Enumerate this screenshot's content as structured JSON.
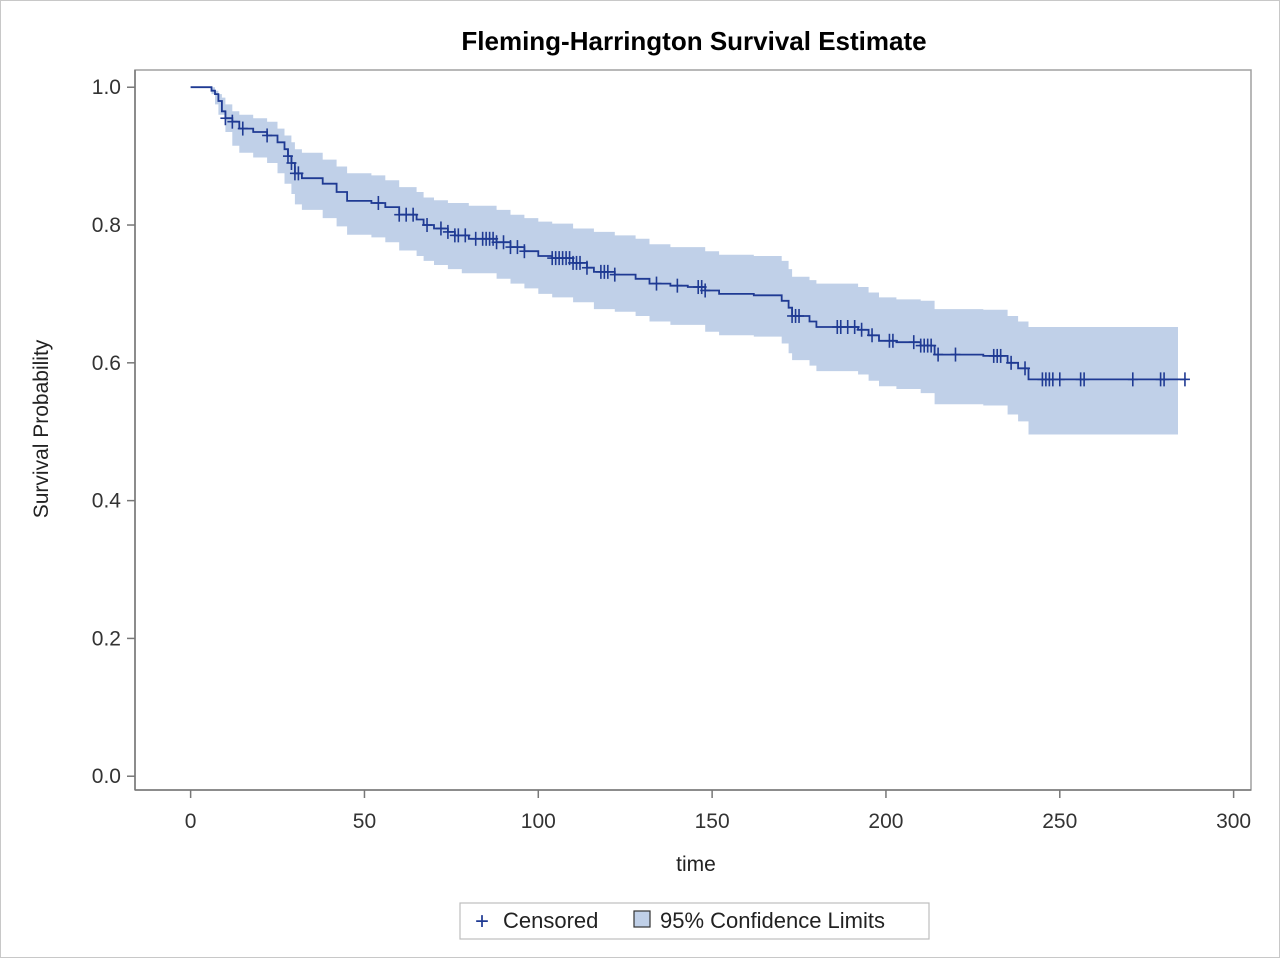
{
  "chart_data": {
    "type": "line",
    "title": "Fleming-Harrington Survival Estimate",
    "xlabel": "time",
    "ylabel": "Survival Probability",
    "xlim": [
      -16,
      305
    ],
    "ylim": [
      -0.02,
      1.025
    ],
    "xticks": [
      "0",
      "50",
      "100",
      "150",
      "200",
      "250",
      "300"
    ],
    "xtick_values": [
      0,
      50,
      100,
      150,
      200,
      250,
      300
    ],
    "yticks": [
      "0.0",
      "0.2",
      "0.4",
      "0.6",
      "0.8",
      "1.0"
    ],
    "ytick_values": [
      0.0,
      0.2,
      0.4,
      0.6,
      0.8,
      1.0
    ],
    "grid": false,
    "legend_position": "bottom-center",
    "colors": {
      "line": "#1f3a93",
      "band": "#c0d0e8",
      "frame": "#a0a0a0"
    },
    "series": [
      {
        "type": "step",
        "points": [
          [
            0,
            1.0
          ],
          [
            4,
            1.0
          ],
          [
            6,
            0.995
          ],
          [
            7,
            0.99
          ],
          [
            8,
            0.98
          ],
          [
            9,
            0.965
          ],
          [
            10,
            0.955
          ],
          [
            12,
            0.95
          ],
          [
            14,
            0.94
          ],
          [
            18,
            0.935
          ],
          [
            22,
            0.93
          ],
          [
            25,
            0.92
          ],
          [
            27,
            0.91
          ],
          [
            28,
            0.9
          ],
          [
            29,
            0.89
          ],
          [
            30,
            0.875
          ],
          [
            32,
            0.868
          ],
          [
            38,
            0.86
          ],
          [
            42,
            0.848
          ],
          [
            45,
            0.835
          ],
          [
            52,
            0.832
          ],
          [
            56,
            0.826
          ],
          [
            60,
            0.815
          ],
          [
            65,
            0.808
          ],
          [
            67,
            0.8
          ],
          [
            70,
            0.795
          ],
          [
            74,
            0.79
          ],
          [
            76,
            0.785
          ],
          [
            80,
            0.78
          ],
          [
            88,
            0.775
          ],
          [
            92,
            0.768
          ],
          [
            96,
            0.762
          ],
          [
            100,
            0.755
          ],
          [
            104,
            0.752
          ],
          [
            110,
            0.745
          ],
          [
            114,
            0.738
          ],
          [
            116,
            0.732
          ],
          [
            122,
            0.728
          ],
          [
            128,
            0.722
          ],
          [
            132,
            0.715
          ],
          [
            138,
            0.712
          ],
          [
            143,
            0.71
          ],
          [
            148,
            0.705
          ],
          [
            152,
            0.7
          ],
          [
            162,
            0.698
          ],
          [
            170,
            0.69
          ],
          [
            172,
            0.68
          ],
          [
            173,
            0.668
          ],
          [
            178,
            0.66
          ],
          [
            180,
            0.652
          ],
          [
            192,
            0.648
          ],
          [
            195,
            0.64
          ],
          [
            198,
            0.632
          ],
          [
            203,
            0.63
          ],
          [
            210,
            0.625
          ],
          [
            214,
            0.612
          ],
          [
            228,
            0.61
          ],
          [
            235,
            0.6
          ],
          [
            238,
            0.592
          ],
          [
            241,
            0.576
          ],
          [
            286,
            0.576
          ]
        ]
      }
    ],
    "confidence_band": {
      "name": "95% Confidence Limits",
      "lower": [
        [
          0,
          1.0
        ],
        [
          4,
          1.0
        ],
        [
          6,
          0.99
        ],
        [
          7,
          0.975
        ],
        [
          8,
          0.96
        ],
        [
          10,
          0.935
        ],
        [
          12,
          0.915
        ],
        [
          14,
          0.905
        ],
        [
          18,
          0.898
        ],
        [
          22,
          0.89
        ],
        [
          25,
          0.875
        ],
        [
          27,
          0.86
        ],
        [
          29,
          0.845
        ],
        [
          30,
          0.83
        ],
        [
          32,
          0.822
        ],
        [
          38,
          0.81
        ],
        [
          42,
          0.798
        ],
        [
          45,
          0.786
        ],
        [
          52,
          0.782
        ],
        [
          56,
          0.775
        ],
        [
          60,
          0.763
        ],
        [
          65,
          0.755
        ],
        [
          67,
          0.748
        ],
        [
          70,
          0.742
        ],
        [
          74,
          0.736
        ],
        [
          78,
          0.73
        ],
        [
          88,
          0.722
        ],
        [
          92,
          0.715
        ],
        [
          96,
          0.708
        ],
        [
          100,
          0.7
        ],
        [
          104,
          0.695
        ],
        [
          110,
          0.688
        ],
        [
          116,
          0.678
        ],
        [
          122,
          0.674
        ],
        [
          128,
          0.668
        ],
        [
          132,
          0.66
        ],
        [
          138,
          0.655
        ],
        [
          148,
          0.645
        ],
        [
          152,
          0.64
        ],
        [
          162,
          0.638
        ],
        [
          170,
          0.628
        ],
        [
          172,
          0.614
        ],
        [
          173,
          0.604
        ],
        [
          178,
          0.596
        ],
        [
          180,
          0.588
        ],
        [
          192,
          0.583
        ],
        [
          195,
          0.574
        ],
        [
          198,
          0.566
        ],
        [
          203,
          0.562
        ],
        [
          210,
          0.556
        ],
        [
          214,
          0.54
        ],
        [
          228,
          0.538
        ],
        [
          235,
          0.525
        ],
        [
          238,
          0.515
        ],
        [
          241,
          0.496
        ],
        [
          284,
          0.496
        ]
      ],
      "upper": [
        [
          0,
          1.0
        ],
        [
          4,
          1.0
        ],
        [
          6,
          1.0
        ],
        [
          7,
          0.995
        ],
        [
          8,
          0.99
        ],
        [
          9,
          0.985
        ],
        [
          10,
          0.975
        ],
        [
          12,
          0.965
        ],
        [
          14,
          0.96
        ],
        [
          18,
          0.955
        ],
        [
          22,
          0.95
        ],
        [
          25,
          0.94
        ],
        [
          27,
          0.93
        ],
        [
          29,
          0.92
        ],
        [
          30,
          0.91
        ],
        [
          32,
          0.905
        ],
        [
          38,
          0.895
        ],
        [
          42,
          0.885
        ],
        [
          45,
          0.875
        ],
        [
          52,
          0.872
        ],
        [
          56,
          0.865
        ],
        [
          60,
          0.855
        ],
        [
          65,
          0.848
        ],
        [
          67,
          0.84
        ],
        [
          70,
          0.836
        ],
        [
          74,
          0.832
        ],
        [
          80,
          0.828
        ],
        [
          88,
          0.822
        ],
        [
          92,
          0.815
        ],
        [
          96,
          0.81
        ],
        [
          100,
          0.805
        ],
        [
          104,
          0.802
        ],
        [
          110,
          0.795
        ],
        [
          116,
          0.79
        ],
        [
          122,
          0.785
        ],
        [
          128,
          0.78
        ],
        [
          132,
          0.772
        ],
        [
          138,
          0.768
        ],
        [
          148,
          0.762
        ],
        [
          152,
          0.757
        ],
        [
          162,
          0.755
        ],
        [
          170,
          0.748
        ],
        [
          172,
          0.736
        ],
        [
          173,
          0.725
        ],
        [
          178,
          0.72
        ],
        [
          180,
          0.715
        ],
        [
          192,
          0.71
        ],
        [
          195,
          0.702
        ],
        [
          198,
          0.695
        ],
        [
          203,
          0.692
        ],
        [
          210,
          0.69
        ],
        [
          214,
          0.678
        ],
        [
          228,
          0.677
        ],
        [
          235,
          0.668
        ],
        [
          238,
          0.66
        ],
        [
          241,
          0.652
        ],
        [
          284,
          0.652
        ]
      ]
    },
    "censored": [
      10,
      12,
      15,
      22,
      28,
      29,
      30,
      31,
      54,
      60,
      62,
      64,
      68,
      72,
      74,
      76,
      77,
      79,
      82,
      84,
      85,
      86,
      87,
      88,
      90,
      92,
      94,
      96,
      104,
      105,
      106,
      107,
      108,
      109,
      110,
      111,
      112,
      114,
      118,
      119,
      120,
      122,
      134,
      140,
      146,
      147,
      148,
      173,
      174,
      175,
      186,
      187,
      189,
      191,
      193,
      196,
      201,
      202,
      208,
      210,
      211,
      212,
      213,
      215,
      220,
      231,
      232,
      233,
      236,
      240,
      245,
      246,
      247,
      248,
      250,
      256,
      257,
      271,
      279,
      280,
      286
    ],
    "legend": [
      {
        "symbol": "+",
        "label": "Censored"
      },
      {
        "symbol": "box",
        "label": "95% Confidence Limits"
      }
    ]
  }
}
